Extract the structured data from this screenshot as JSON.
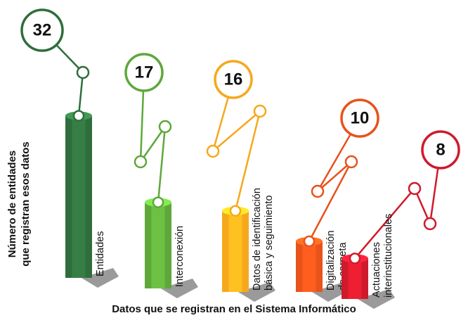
{
  "chart_data": {
    "type": "bar",
    "x_label": "Datos que se registran en el Sistema Informático",
    "y_label": [
      "Número de entidades",
      "que registran esos datos"
    ],
    "categories": [
      [
        "Entidades"
      ],
      [
        "Interconexión"
      ],
      [
        "Datos de identificación",
        "básica y seguimiento"
      ],
      [
        "Digitalización",
        "de carpeta"
      ],
      [
        "Actuaciones",
        "interinstitucionales"
      ]
    ],
    "values": [
      32,
      17,
      16,
      10,
      8
    ],
    "colors": [
      "#2f6e3c",
      "#5ea83a",
      "#f6a81c",
      "#e8521b",
      "#cf1a2c"
    ]
  }
}
